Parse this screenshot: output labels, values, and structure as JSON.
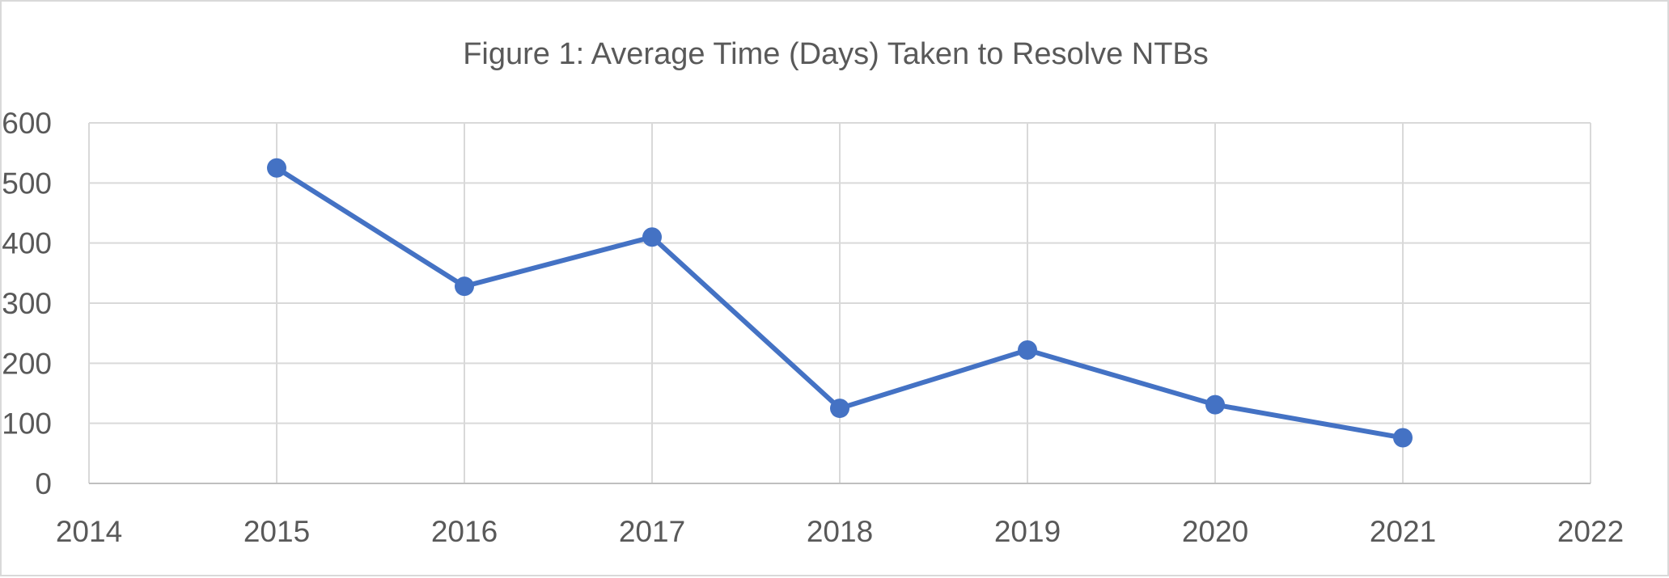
{
  "chart_data": {
    "type": "line",
    "title": "Figure 1: Average Time (Days) Taken to Resolve NTBs",
    "xlabel": "",
    "ylabel": "",
    "xlim": [
      2014,
      2022
    ],
    "ylim": [
      0,
      600
    ],
    "x_ticks": [
      2014,
      2015,
      2016,
      2017,
      2018,
      2019,
      2020,
      2021,
      2022
    ],
    "y_ticks": [
      0,
      100,
      200,
      300,
      400,
      500,
      600
    ],
    "grid": true,
    "legend": "none",
    "series": [
      {
        "color": "#4472c4",
        "marker": "circle",
        "x": [
          2015,
          2016,
          2017,
          2018,
          2019,
          2020,
          2021
        ],
        "y": [
          525,
          328,
          410,
          125,
          222,
          131,
          76
        ]
      }
    ]
  },
  "colors": {
    "series": "#4472c4",
    "gridline": "#d9d9d9",
    "text": "#595959",
    "border": "#d9d9d9"
  }
}
